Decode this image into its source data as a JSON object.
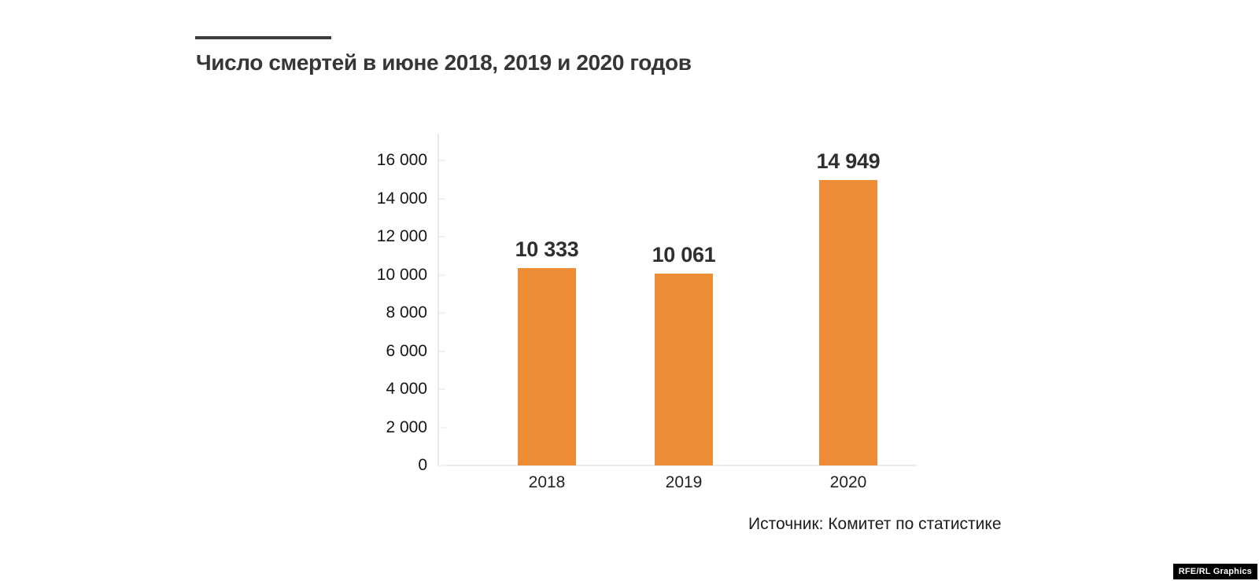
{
  "header": {
    "title": "Число смертей в июне 2018, 2019 и 2020 годов",
    "accent_rule_color": "#3d3d3d"
  },
  "chart_data": {
    "type": "bar",
    "title": "Число смертей в июне 2018, 2019 и 2020 годов",
    "categories": [
      "2018",
      "2019",
      "2020"
    ],
    "values": [
      10333,
      10061,
      14949
    ],
    "value_labels": [
      "10 333",
      "10 061",
      "14 949"
    ],
    "xlabel": "",
    "ylabel": "",
    "ylim": [
      0,
      16000
    ],
    "yticks": [
      {
        "value": 0,
        "label": "0"
      },
      {
        "value": 2000,
        "label": "2 000"
      },
      {
        "value": 4000,
        "label": "4 000"
      },
      {
        "value": 6000,
        "label": "6 000"
      },
      {
        "value": 8000,
        "label": "8 000"
      },
      {
        "value": 10000,
        "label": "10 000"
      },
      {
        "value": 12000,
        "label": "12 000"
      },
      {
        "value": 14000,
        "label": "14 000"
      },
      {
        "value": 16000,
        "label": "16 000"
      }
    ],
    "grid": false,
    "legend": null,
    "bar_color": "#EE8B35"
  },
  "footer": {
    "source": "Источник: Комитет по статистике",
    "credit": "RFE/RL Graphics"
  }
}
